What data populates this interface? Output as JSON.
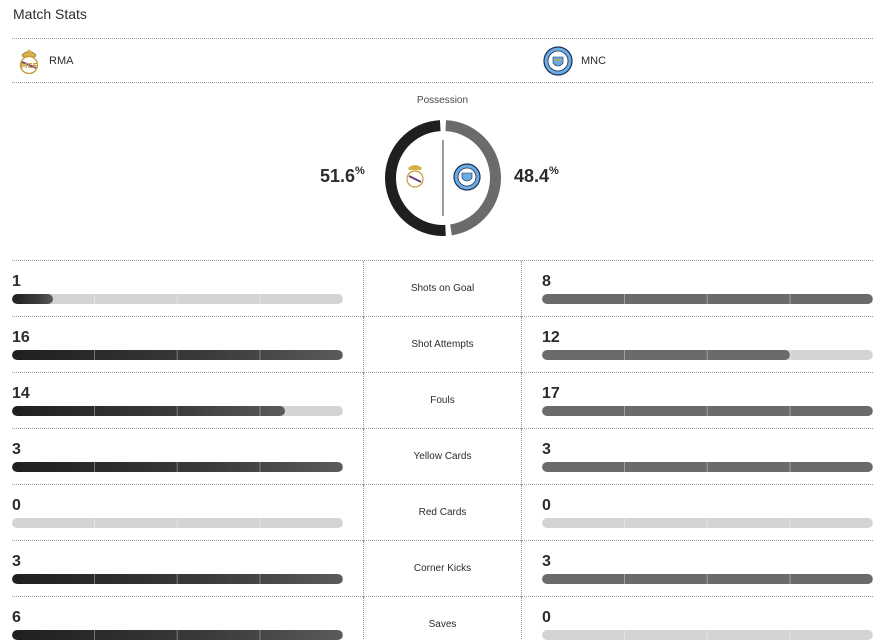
{
  "title": "Match Stats",
  "teams": {
    "home": {
      "abbr": "RMA",
      "logo_icon": "real-madrid-crest-icon",
      "color": "#1e1f20"
    },
    "away": {
      "abbr": "MNC",
      "logo_icon": "manchester-city-crest-icon",
      "color": "#6b6b6b"
    }
  },
  "possession": {
    "label": "Possession",
    "home_value": "51.6",
    "away_value": "48.4",
    "unit": "%",
    "home_fraction": 0.516
  },
  "stats": [
    {
      "label": "Shots on Goal",
      "home": "1",
      "away": "8"
    },
    {
      "label": "Shot Attempts",
      "home": "16",
      "away": "12"
    },
    {
      "label": "Fouls",
      "home": "14",
      "away": "17"
    },
    {
      "label": "Yellow Cards",
      "home": "3",
      "away": "3"
    },
    {
      "label": "Red Cards",
      "home": "0",
      "away": "0"
    },
    {
      "label": "Corner Kicks",
      "home": "3",
      "away": "3"
    },
    {
      "label": "Saves",
      "home": "6",
      "away": "0"
    }
  ]
}
